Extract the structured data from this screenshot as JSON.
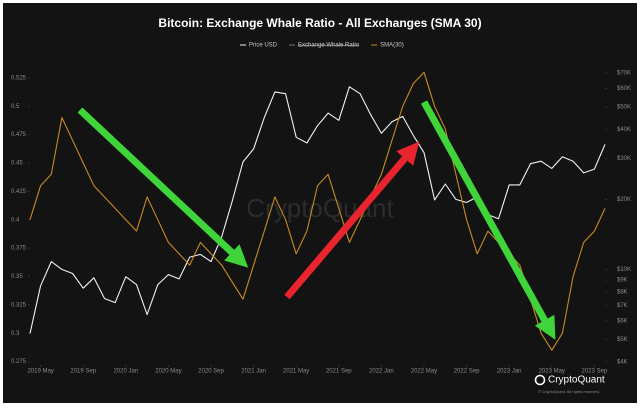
{
  "chart_data": {
    "type": "line",
    "title": "Bitcoin: Exchange Whale Ratio - All Exchanges (SMA 30)",
    "watermark": "CryptoQuant",
    "logo_text": "CryptoQuant",
    "copyright": "© CryptoQuant. All rights reserved.",
    "x": [
      "2019-04",
      "2019-05",
      "2019-06",
      "2019-07",
      "2019-08",
      "2019-09",
      "2019-10",
      "2019-11",
      "2019-12",
      "2020-01",
      "2020-02",
      "2020-03",
      "2020-04",
      "2020-05",
      "2020-06",
      "2020-07",
      "2020-08",
      "2020-09",
      "2020-10",
      "2020-11",
      "2020-12",
      "2021-01",
      "2021-02",
      "2021-03",
      "2021-04",
      "2021-05",
      "2021-06",
      "2021-07",
      "2021-08",
      "2021-09",
      "2021-10",
      "2021-11",
      "2021-12",
      "2022-01",
      "2022-02",
      "2022-03",
      "2022-04",
      "2022-05",
      "2022-06",
      "2022-07",
      "2022-08",
      "2022-09",
      "2022-10",
      "2022-11",
      "2022-12",
      "2023-01",
      "2023-02",
      "2023-03",
      "2023-04",
      "2023-05",
      "2023-06",
      "2023-07",
      "2023-08",
      "2023-09",
      "2023-10"
    ],
    "xlim": [
      "2019-04",
      "2023-10"
    ],
    "xticks": [
      {
        "value": "2019-05",
        "label": "2019 May"
      },
      {
        "value": "2019-09",
        "label": "2019 Sep"
      },
      {
        "value": "2020-01",
        "label": "2020 Jan"
      },
      {
        "value": "2020-05",
        "label": "2020 May"
      },
      {
        "value": "2020-09",
        "label": "2020 Sep"
      },
      {
        "value": "2021-01",
        "label": "2021 Jan"
      },
      {
        "value": "2021-05",
        "label": "2021 May"
      },
      {
        "value": "2021-09",
        "label": "2021 Sep"
      },
      {
        "value": "2022-01",
        "label": "2022 Jan"
      },
      {
        "value": "2022-05",
        "label": "2022 May"
      },
      {
        "value": "2022-09",
        "label": "2022 Sep"
      },
      {
        "value": "2023-01",
        "label": "2023 Jan"
      },
      {
        "value": "2023-05",
        "label": "2023 May"
      },
      {
        "value": "2023-09",
        "label": "2023 Sep"
      }
    ],
    "ylim": [
      0.272,
      0.539
    ],
    "yticks": [
      0.275,
      0.3,
      0.325,
      0.35,
      0.375,
      0.4,
      0.425,
      0.45,
      0.475,
      0.5,
      0.525
    ],
    "y2lim": [
      3880,
      78000
    ],
    "y2log": true,
    "y2ticks": [
      {
        "value": 4000,
        "label": "$4K"
      },
      {
        "value": 5000,
        "label": "$5K"
      },
      {
        "value": 6000,
        "label": "$6K"
      },
      {
        "value": 7000,
        "label": "$7K"
      },
      {
        "value": 8000,
        "label": "$8K"
      },
      {
        "value": 9000,
        "label": "$9K"
      },
      {
        "value": 10000,
        "label": "$10K"
      },
      {
        "value": 20000,
        "label": "$20K"
      },
      {
        "value": 30000,
        "label": "$30K"
      },
      {
        "value": 40000,
        "label": "$40K"
      },
      {
        "value": 50000,
        "label": "$50K"
      },
      {
        "value": 60000,
        "label": "$60K"
      },
      {
        "value": 70000,
        "label": "$70K"
      }
    ],
    "grid": false,
    "series": [
      {
        "name": "Price USD",
        "color": "#f2f2f2",
        "axis": "y2",
        "values": [
          5300,
          8500,
          10800,
          10000,
          9600,
          8300,
          9200,
          7500,
          7200,
          9300,
          8600,
          6400,
          8600,
          9500,
          9100,
          11300,
          11600,
          10800,
          13800,
          19700,
          29000,
          33000,
          45000,
          58000,
          57000,
          37000,
          35000,
          41500,
          47000,
          43800,
          61000,
          57000,
          46300,
          38500,
          43200,
          45500,
          37700,
          31800,
          19900,
          23300,
          20000,
          19400,
          20500,
          17200,
          16500,
          23100,
          23100,
          28500,
          29200,
          27200,
          30500,
          29200,
          26000,
          27000,
          34500
        ]
      },
      {
        "name": "Exchange Whale Ratio",
        "color": "#7a7a7a",
        "hidden": true
      },
      {
        "name": "SMA(30)",
        "color": "#c88a1e",
        "values": [
          0.4,
          0.43,
          0.44,
          0.49,
          0.47,
          0.45,
          0.43,
          0.42,
          0.41,
          0.4,
          0.39,
          0.42,
          0.4,
          0.38,
          0.37,
          0.36,
          0.38,
          0.37,
          0.36,
          0.345,
          0.33,
          0.36,
          0.39,
          0.42,
          0.4,
          0.37,
          0.39,
          0.43,
          0.44,
          0.41,
          0.38,
          0.4,
          0.42,
          0.44,
          0.47,
          0.5,
          0.52,
          0.53,
          0.5,
          0.48,
          0.44,
          0.4,
          0.37,
          0.39,
          0.38,
          0.37,
          0.36,
          0.33,
          0.3,
          0.285,
          0.3,
          0.35,
          0.38,
          0.39,
          0.41
        ]
      }
    ]
  }
}
